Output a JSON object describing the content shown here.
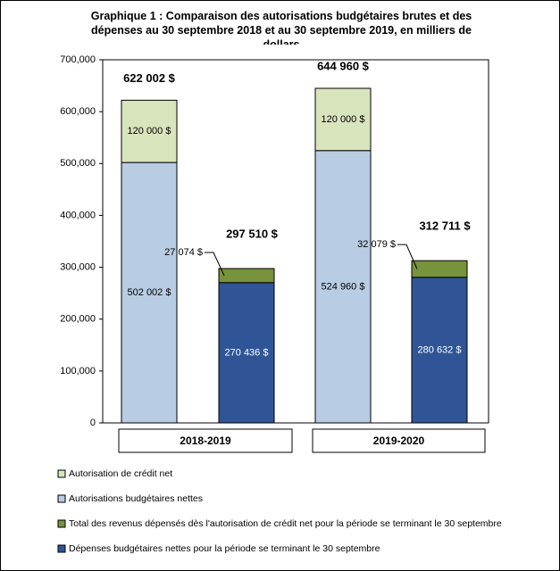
{
  "chart_data": {
    "type": "stacked_bar",
    "title": "Graphique 1 : Comparaison des autorisations budgétaires brutes et des dépenses au 30 septembre 2018 et au 30 septembre 2019, en milliers de dollars",
    "categories": [
      null,
      null,
      null,
      null
    ],
    "groups": [
      "2018-2019",
      "2019-2020"
    ],
    "series": [
      {
        "name": "Autorisation de crédit net",
        "color": "#d8e4bc",
        "label_color": "#000000",
        "values": [
          120000,
          null,
          120000,
          null
        ],
        "value_labels": [
          "120 000 $",
          null,
          "120 000 $",
          null
        ]
      },
      {
        "name": "Autorisations budgétaires nettes",
        "color": "#b8cce4",
        "label_color": "#000000",
        "values": [
          502002,
          null,
          524960,
          null
        ],
        "value_labels": [
          "502 002 $",
          null,
          "524 960 $",
          null
        ]
      },
      {
        "name": "Total des revenus dépensés dès l'autorisation de crédit net pour la période se terminant le 30 septembre",
        "color": "#77933c",
        "label_color": "#000000",
        "values": [
          null,
          27074,
          null,
          32079
        ],
        "value_labels": [
          null,
          "27 074 $",
          null,
          "32 079 $"
        ]
      },
      {
        "name": "Dépenses budgétaires nettes pour la période se terminant le 30 septembre",
        "color": "#2f5597",
        "label_color": "#ffffff",
        "values": [
          null,
          270436,
          null,
          280632
        ],
        "value_labels": [
          null,
          "270 436 $",
          null,
          "280 632 $"
        ]
      }
    ],
    "totals": [
      622002,
      297510,
      644960,
      312711
    ],
    "total_labels": [
      "622 002 $",
      "297 510 $",
      "644 960 $",
      "312 711 $"
    ],
    "ylim": [
      0,
      700000
    ],
    "yticks": [
      0,
      {
        "value": 100000,
        "label": "100,000"
      },
      {
        "value": 200000,
        "label": "200,000"
      },
      {
        "value": 300000,
        "label": "300,000"
      },
      {
        "value": 400000,
        "label": "400,000"
      },
      {
        "value": 500000,
        "label": "500,000"
      },
      {
        "value": 600000,
        "label": "600,000"
      },
      {
        "value": 700000,
        "label": "700,000"
      }
    ],
    "grid": false
  }
}
